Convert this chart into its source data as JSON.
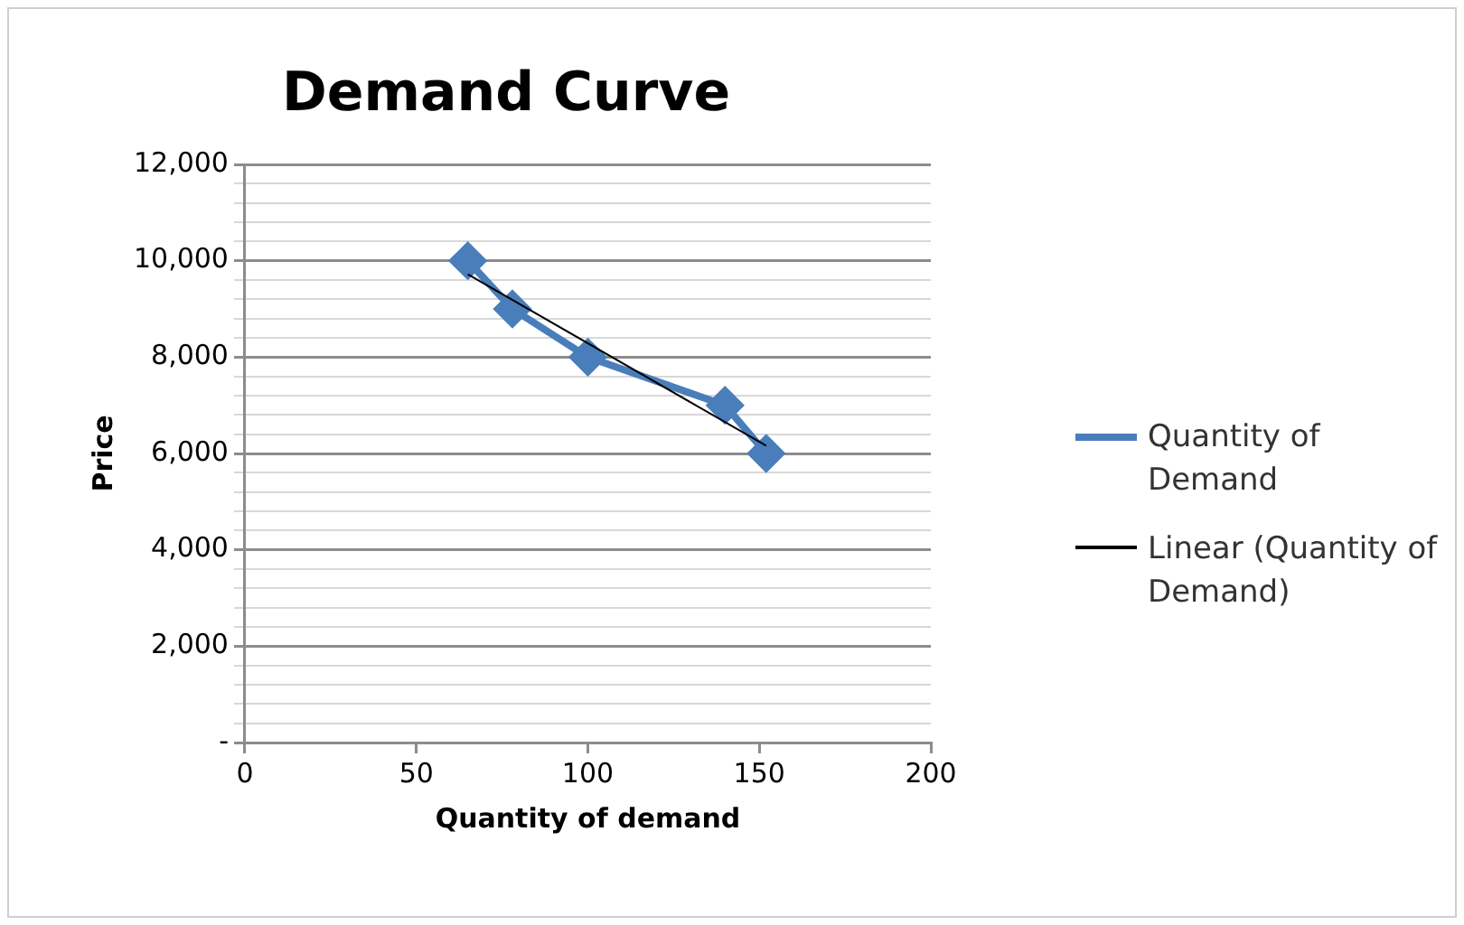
{
  "chart_data": {
    "type": "scatter",
    "title": "Demand Curve",
    "xlabel": "Quantity of demand",
    "ylabel": "Price",
    "xlim": [
      0,
      200
    ],
    "xticks": [
      0,
      50,
      100,
      150,
      200
    ],
    "ylim": [
      0,
      12000
    ],
    "yticks": [
      {
        "value": 0,
        "label": "-"
      },
      {
        "value": 400,
        "label": null
      },
      {
        "value": 800,
        "label": null
      },
      {
        "value": 1200,
        "label": null
      },
      {
        "value": 1600,
        "label": null
      },
      {
        "value": 2000,
        "label": "2,000"
      },
      {
        "value": 2400,
        "label": null
      },
      {
        "value": 2800,
        "label": null
      },
      {
        "value": 3200,
        "label": null
      },
      {
        "value": 3600,
        "label": null
      },
      {
        "value": 4000,
        "label": "4,000"
      },
      {
        "value": 4400,
        "label": null
      },
      {
        "value": 4800,
        "label": null
      },
      {
        "value": 5200,
        "label": null
      },
      {
        "value": 5600,
        "label": null
      },
      {
        "value": 6000,
        "label": "6,000"
      },
      {
        "value": 6400,
        "label": null
      },
      {
        "value": 6800,
        "label": null
      },
      {
        "value": 7200,
        "label": null
      },
      {
        "value": 7600,
        "label": null
      },
      {
        "value": 8000,
        "label": "8,000"
      },
      {
        "value": 8400,
        "label": null
      },
      {
        "value": 8800,
        "label": null
      },
      {
        "value": 9200,
        "label": null
      },
      {
        "value": 9600,
        "label": null
      },
      {
        "value": 10000,
        "label": "10,000"
      },
      {
        "value": 10400,
        "label": null
      },
      {
        "value": 10800,
        "label": null
      },
      {
        "value": 11200,
        "label": null
      },
      {
        "value": 11600,
        "label": null
      },
      {
        "value": 12000,
        "label": "12,000"
      }
    ],
    "grid": "y",
    "legend": "right",
    "marker": "diamond",
    "line_style": "solid",
    "series": [
      {
        "name": "Quantity of Demand",
        "type": "line",
        "color": "#4a7ebb",
        "x": [
          65,
          78,
          100,
          140,
          152
        ],
        "values": [
          10000,
          9000,
          8000,
          7000,
          6000
        ]
      },
      {
        "name": "Linear (Quantity of Demand)",
        "type": "line",
        "marker": "none",
        "color": "#000000",
        "x": [
          65,
          152
        ],
        "values": [
          9720,
          6160
        ]
      }
    ]
  }
}
